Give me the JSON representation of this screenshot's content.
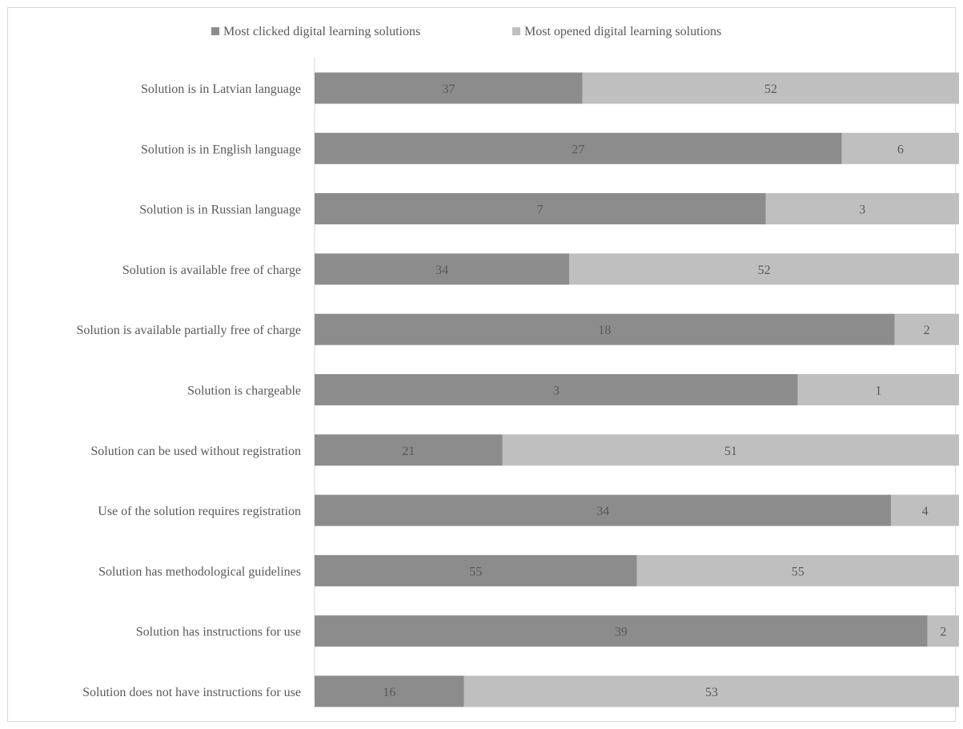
{
  "chart_data": {
    "type": "bar",
    "orientation": "horizontal",
    "stacking": "100%",
    "title": "",
    "xlabel": "",
    "ylabel": "",
    "grid": false,
    "legend_position": "top",
    "categories": [
      "Solution is in Latvian language",
      "Solution is in English language",
      "Solution is in Russian language",
      "Solution is available free of charge",
      "Solution is available partially free of charge",
      "Solution is chargeable",
      "Solution can be used without registration",
      "Use of the solution requires registration",
      "Solution has methodological guidelines",
      "Solution has instructions for use",
      "Solution does not have instructions for use"
    ],
    "series": [
      {
        "name": "Most clicked digital learning solutions",
        "color": "#8c8c8c",
        "values": [
          37,
          27,
          7,
          34,
          18,
          3,
          21,
          34,
          55,
          39,
          16
        ]
      },
      {
        "name": "Most opened digital learning solutions",
        "color": "#bfbfbf",
        "values": [
          52,
          6,
          3,
          52,
          2,
          1,
          51,
          4,
          55,
          2,
          53
        ]
      }
    ]
  }
}
